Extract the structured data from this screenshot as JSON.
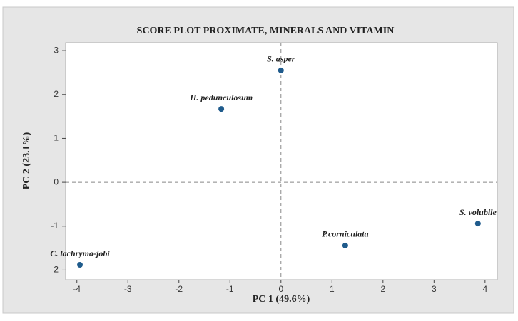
{
  "chart_data": {
    "type": "scatter",
    "title": "SCORE PLOT PROXIMATE, MINERALS AND VITAMIN",
    "x_label": "PC 1 (49.6%)",
    "y_label": "PC 2 (23.1%)",
    "labels": [
      "S. asper",
      "H. pedunculosum",
      "C. lachryma-jobi",
      "P.corniculata",
      "S. volubile"
    ],
    "x": [
      0.0,
      -1.17,
      -3.94,
      1.26,
      3.86
    ],
    "y": [
      2.55,
      1.67,
      -1.88,
      -1.44,
      -0.94
    ],
    "color": "#1f5b8c",
    "xlim": [
      -4.22,
      4.24
    ],
    "ylim": [
      -2.22,
      3.18
    ],
    "xticks": [
      -4,
      -3,
      -2,
      -1,
      0,
      1,
      2,
      3,
      4
    ],
    "yticks": [
      -2,
      -1,
      0,
      1,
      2,
      3
    ],
    "hline": 0,
    "vline": 0
  }
}
